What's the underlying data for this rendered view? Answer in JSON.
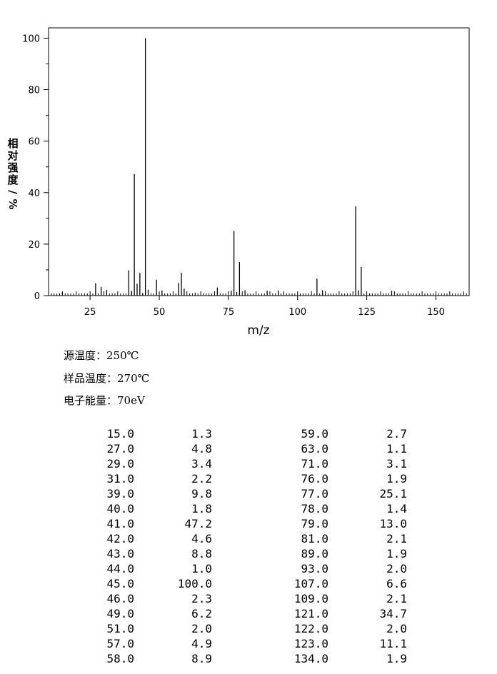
{
  "chart_data": {
    "type": "bar",
    "xlabel": "m/z",
    "ylabel": "相对强度/%",
    "xlim": [
      10,
      162
    ],
    "ylim": [
      0,
      104
    ],
    "xticks": [
      25,
      50,
      75,
      100,
      125,
      150
    ],
    "yticks": [
      0,
      20,
      40,
      60,
      80,
      100
    ],
    "grid": false,
    "x": [
      15,
      27,
      29,
      31,
      39,
      40,
      41,
      42,
      43,
      44,
      45,
      46,
      49,
      51,
      57,
      58,
      59,
      63,
      71,
      76,
      77,
      78,
      79,
      81,
      89,
      93,
      107,
      109,
      121,
      122,
      123,
      134
    ],
    "values": [
      1.3,
      4.8,
      3.4,
      2.2,
      9.8,
      1.8,
      47.2,
      4.6,
      8.8,
      1.0,
      100.0,
      2.3,
      6.2,
      2.0,
      4.9,
      8.9,
      2.7,
      1.1,
      3.1,
      1.9,
      25.1,
      1.4,
      13.0,
      2.1,
      1.9,
      2.0,
      6.6,
      2.1,
      34.7,
      2.0,
      11.1,
      1.9
    ]
  },
  "conditions": {
    "source_temp": "源温度：250℃",
    "sample_temp": "样品温度：270℃",
    "electron_energy": "电子能量：70eV"
  },
  "peak_table": {
    "left": [
      [
        "15.0",
        "1.3"
      ],
      [
        "27.0",
        "4.8"
      ],
      [
        "29.0",
        "3.4"
      ],
      [
        "31.0",
        "2.2"
      ],
      [
        "39.0",
        "9.8"
      ],
      [
        "40.0",
        "1.8"
      ],
      [
        "41.0",
        "47.2"
      ],
      [
        "42.0",
        "4.6"
      ],
      [
        "43.0",
        "8.8"
      ],
      [
        "44.0",
        "1.0"
      ],
      [
        "45.0",
        "100.0"
      ],
      [
        "46.0",
        "2.3"
      ],
      [
        "49.0",
        "6.2"
      ],
      [
        "51.0",
        "2.0"
      ],
      [
        "57.0",
        "4.9"
      ],
      [
        "58.0",
        "8.9"
      ]
    ],
    "right": [
      [
        "59.0",
        "2.7"
      ],
      [
        "63.0",
        "1.1"
      ],
      [
        "71.0",
        "3.1"
      ],
      [
        "76.0",
        "1.9"
      ],
      [
        "77.0",
        "25.1"
      ],
      [
        "78.0",
        "1.4"
      ],
      [
        "79.0",
        "13.0"
      ],
      [
        "81.0",
        "2.1"
      ],
      [
        "89.0",
        "1.9"
      ],
      [
        "93.0",
        "2.0"
      ],
      [
        "107.0",
        "6.6"
      ],
      [
        "109.0",
        "2.1"
      ],
      [
        "121.0",
        "34.7"
      ],
      [
        "122.0",
        "2.0"
      ],
      [
        "123.0",
        "11.1"
      ],
      [
        "134.0",
        "1.9"
      ]
    ]
  }
}
